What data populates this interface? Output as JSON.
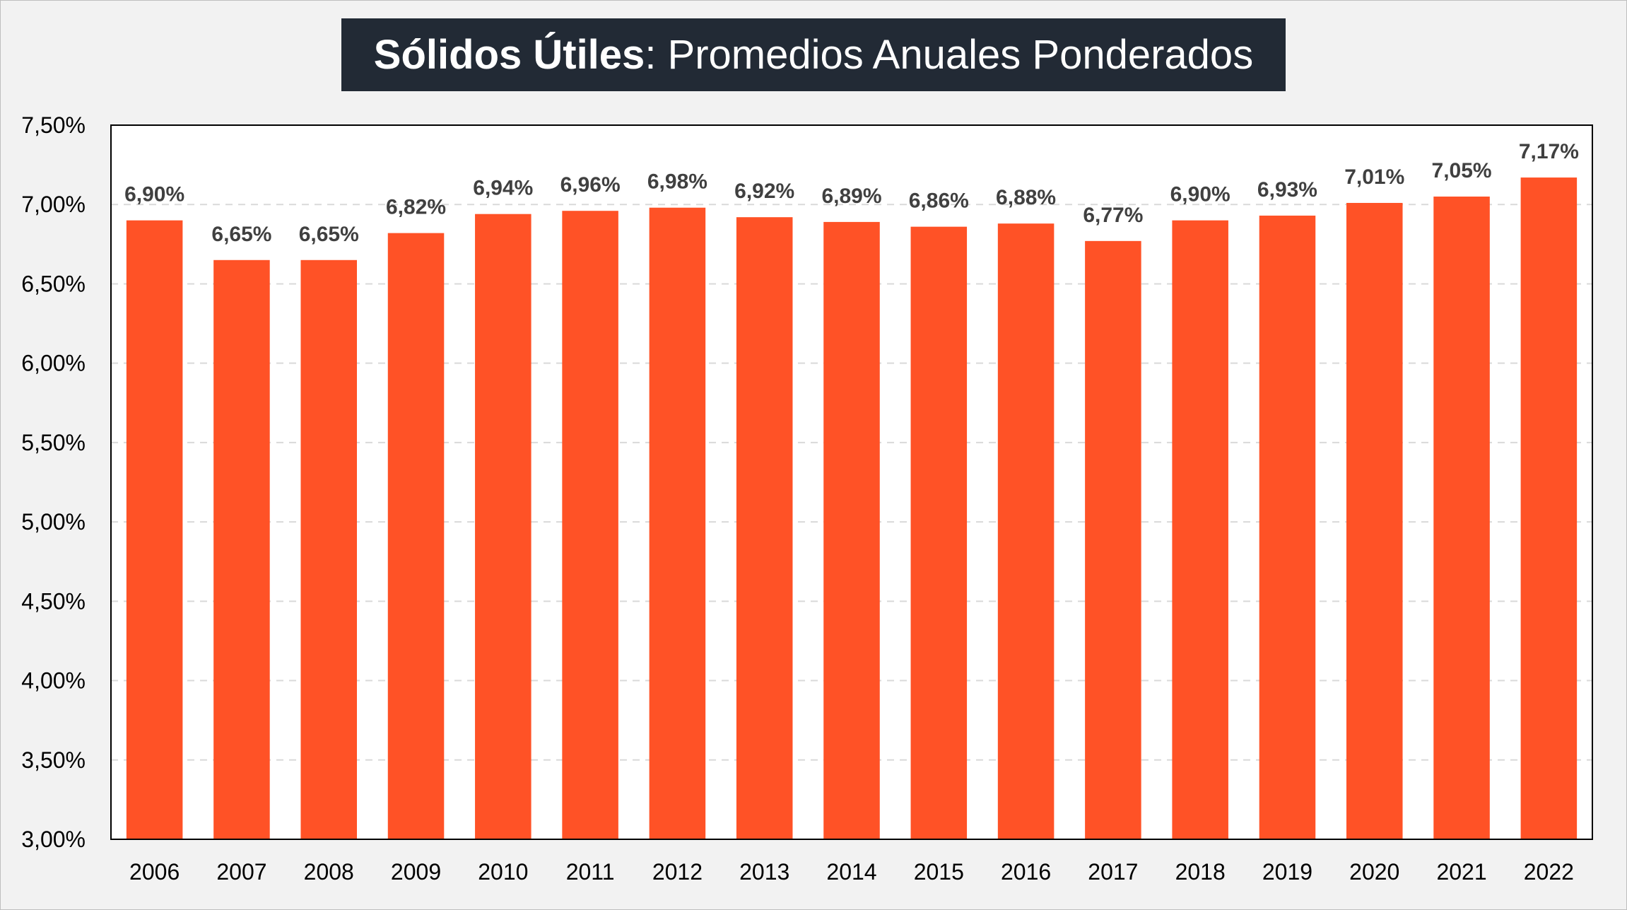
{
  "title": {
    "bold": "Sólidos Útiles",
    "rest": ": Promedios Anuales Ponderados"
  },
  "colors": {
    "bar": "#ff5226",
    "title_background": "#222a35",
    "title_text": "#ffffff",
    "plot_background": "#ffffff",
    "page_background": "#f2f2f2"
  },
  "chart_data": {
    "type": "bar",
    "title": "Sólidos Útiles: Promedios Anuales Ponderados",
    "xlabel": "",
    "ylabel": "",
    "categories": [
      "2006",
      "2007",
      "2008",
      "2009",
      "2010",
      "2011",
      "2012",
      "2013",
      "2014",
      "2015",
      "2016",
      "2017",
      "2018",
      "2019",
      "2020",
      "2021",
      "2022"
    ],
    "values": [
      6.9,
      6.65,
      6.65,
      6.82,
      6.94,
      6.96,
      6.98,
      6.92,
      6.89,
      6.86,
      6.88,
      6.77,
      6.9,
      6.93,
      7.01,
      7.05,
      7.17
    ],
    "data_labels": [
      "6,90%",
      "6,65%",
      "6,65%",
      "6,82%",
      "6,94%",
      "6,96%",
      "6,98%",
      "6,92%",
      "6,89%",
      "6,86%",
      "6,88%",
      "6,77%",
      "6,90%",
      "6,93%",
      "7,01%",
      "7,05%",
      "7,17%"
    ],
    "ylim": [
      3.0,
      7.5
    ],
    "y_ticks": [
      3.0,
      3.5,
      4.0,
      4.5,
      5.0,
      5.5,
      6.0,
      6.5,
      7.0,
      7.5
    ],
    "y_tick_labels": [
      "3,00%",
      "3,50%",
      "4,00%",
      "4,50%",
      "5,00%",
      "5,50%",
      "6,00%",
      "6,50%",
      "7,00%",
      "7,50%"
    ],
    "grid": true,
    "legend": "none"
  }
}
